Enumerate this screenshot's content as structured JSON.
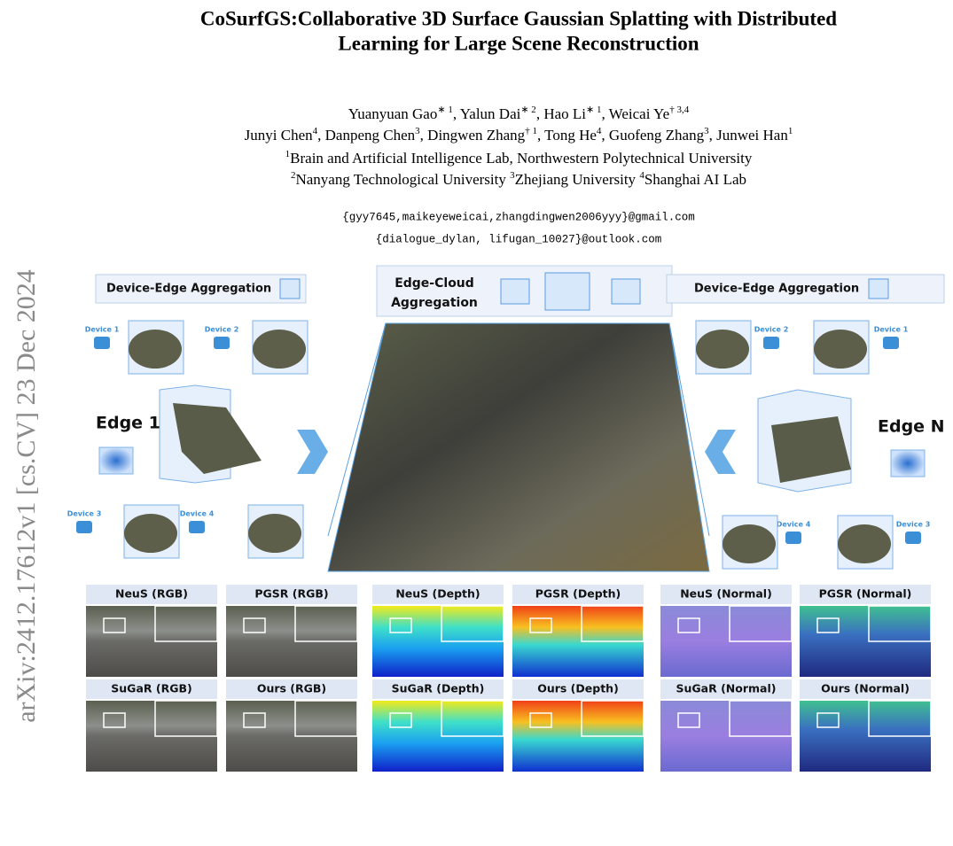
{
  "arxiv_id": "arXiv:2412.17612v1  [cs.CV]  23 Dec 2024",
  "header": {
    "title_lines": [
      "CoSurfGS:Collaborative 3D Surface Gaussian Splatting with Distributed",
      "Learning for Large Scene Reconstruction"
    ]
  },
  "authors": [
    [
      {
        "name": "Yuanyuan Gao",
        "sup": "∗ 1"
      },
      {
        "name": "Yalun Dai",
        "sup": "∗ 2"
      },
      {
        "name": "Hao Li",
        "sup": "∗ 1"
      },
      {
        "name": "Weicai Ye",
        "sup": "† 3,4"
      }
    ],
    [
      {
        "name": "Junyi Chen",
        "sup": "4"
      },
      {
        "name": "Danpeng Chen",
        "sup": "3"
      },
      {
        "name": "Dingwen Zhang",
        "sup": "† 1"
      },
      {
        "name": "Tong He",
        "sup": "4"
      },
      {
        "name": "Guofeng Zhang",
        "sup": "3"
      },
      {
        "name": "Junwei Han",
        "sup": "1"
      }
    ]
  ],
  "affiliations": [
    [
      {
        "sup": "1",
        "text": "Brain and Artificial Intelligence Lab, Northwestern Polytechnical University"
      }
    ],
    [
      {
        "sup": "2",
        "text": "Nanyang Technological University"
      },
      {
        "sup": "3",
        "text": "Zhejiang University"
      },
      {
        "sup": "4",
        "text": "Shanghai AI Lab"
      }
    ]
  ],
  "emails": [
    "{gyy7645,maikeyeweicai,zhangdingwen2006yyy}@gmail.com",
    "{dialogue_dylan, lifugan_10027}@outlook.com"
  ],
  "figure": {
    "left_box": "Device-Edge Aggregation",
    "right_box": "Device-Edge Aggregation",
    "center_box": [
      "Edge-Cloud",
      "Aggregation"
    ],
    "edge_left": "Edge 1",
    "edge_right": "Edge N",
    "devices_left": [
      "Device 1",
      "Device 2",
      "Device 3",
      "Device 4"
    ],
    "devices_right": [
      "Device 2",
      "Device 1",
      "Device 4",
      "Device 3"
    ],
    "panels": [
      "NeuS (RGB)",
      "PGSR (RGB)",
      "NeuS (Depth)",
      "PGSR (Depth)",
      "NeuS (Normal)",
      "PGSR (Normal)",
      "SuGaR (RGB)",
      "Ours (RGB)",
      "SuGaR (Depth)",
      "Ours (Depth)",
      "SuGaR (Normal)",
      "Ours (Normal)"
    ]
  }
}
